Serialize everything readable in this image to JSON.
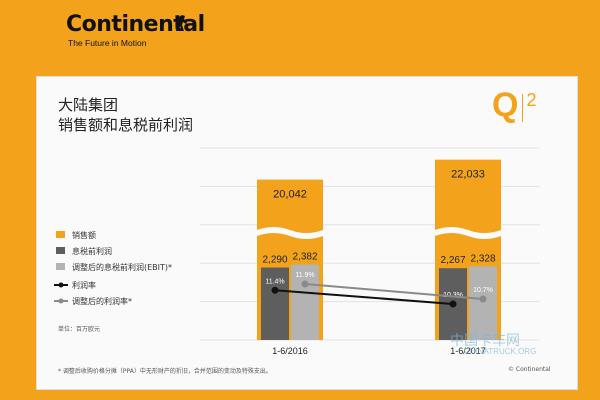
{
  "brand": {
    "name": "Continental",
    "tagline": "The Future in Motion"
  },
  "slide": {
    "title": "大陆集团",
    "subtitle": "销售额和息税前利润",
    "quarter_badge": {
      "q": "Q",
      "n": "2"
    },
    "unit": "单位：百万欧元",
    "footnote": "* 调整后收购价格分摊（PPA）中无形财产的折旧，合并范围的变动及特殊支出。",
    "copyright": "© Continental"
  },
  "watermark": {
    "cn": "中国卡车网",
    "en": "CHINATRUCK.ORG"
  },
  "colors": {
    "orange": "#f3a31b",
    "dark_gray": "#5e5e5e",
    "light_gray": "#b3b3b3",
    "black": "#111111",
    "gray_line": "#8a8a8a"
  },
  "chart_data": {
    "type": "bar",
    "categories": [
      "1-6/2016",
      "1-6/2017"
    ],
    "series": [
      {
        "name": "销售额",
        "kind": "bar",
        "color": "#f3a31b",
        "values": [
          20042,
          22033
        ],
        "labels": [
          "20,042",
          "22,033"
        ]
      },
      {
        "name": "息税前利润",
        "kind": "bar",
        "color": "#5e5e5e",
        "values": [
          2290,
          2267
        ],
        "labels": [
          "2,290",
          "2,267"
        ]
      },
      {
        "name": "调整后的息税前利润(EBIT)*",
        "kind": "bar",
        "color": "#b3b3b3",
        "values": [
          2382,
          2328
        ],
        "labels": [
          "2,382",
          "2,328"
        ]
      },
      {
        "name": "利润率",
        "kind": "line",
        "color": "#111111",
        "values": [
          11.4,
          10.3
        ],
        "labels": [
          "11.4%",
          "10.3%"
        ]
      },
      {
        "name": "调整后的利润率*",
        "kind": "line",
        "color": "#8a8a8a",
        "values": [
          11.9,
          10.7
        ],
        "labels": [
          "11.9%",
          "10.7%"
        ]
      }
    ],
    "axis_break": true,
    "grid": true,
    "legend_position": "left"
  }
}
